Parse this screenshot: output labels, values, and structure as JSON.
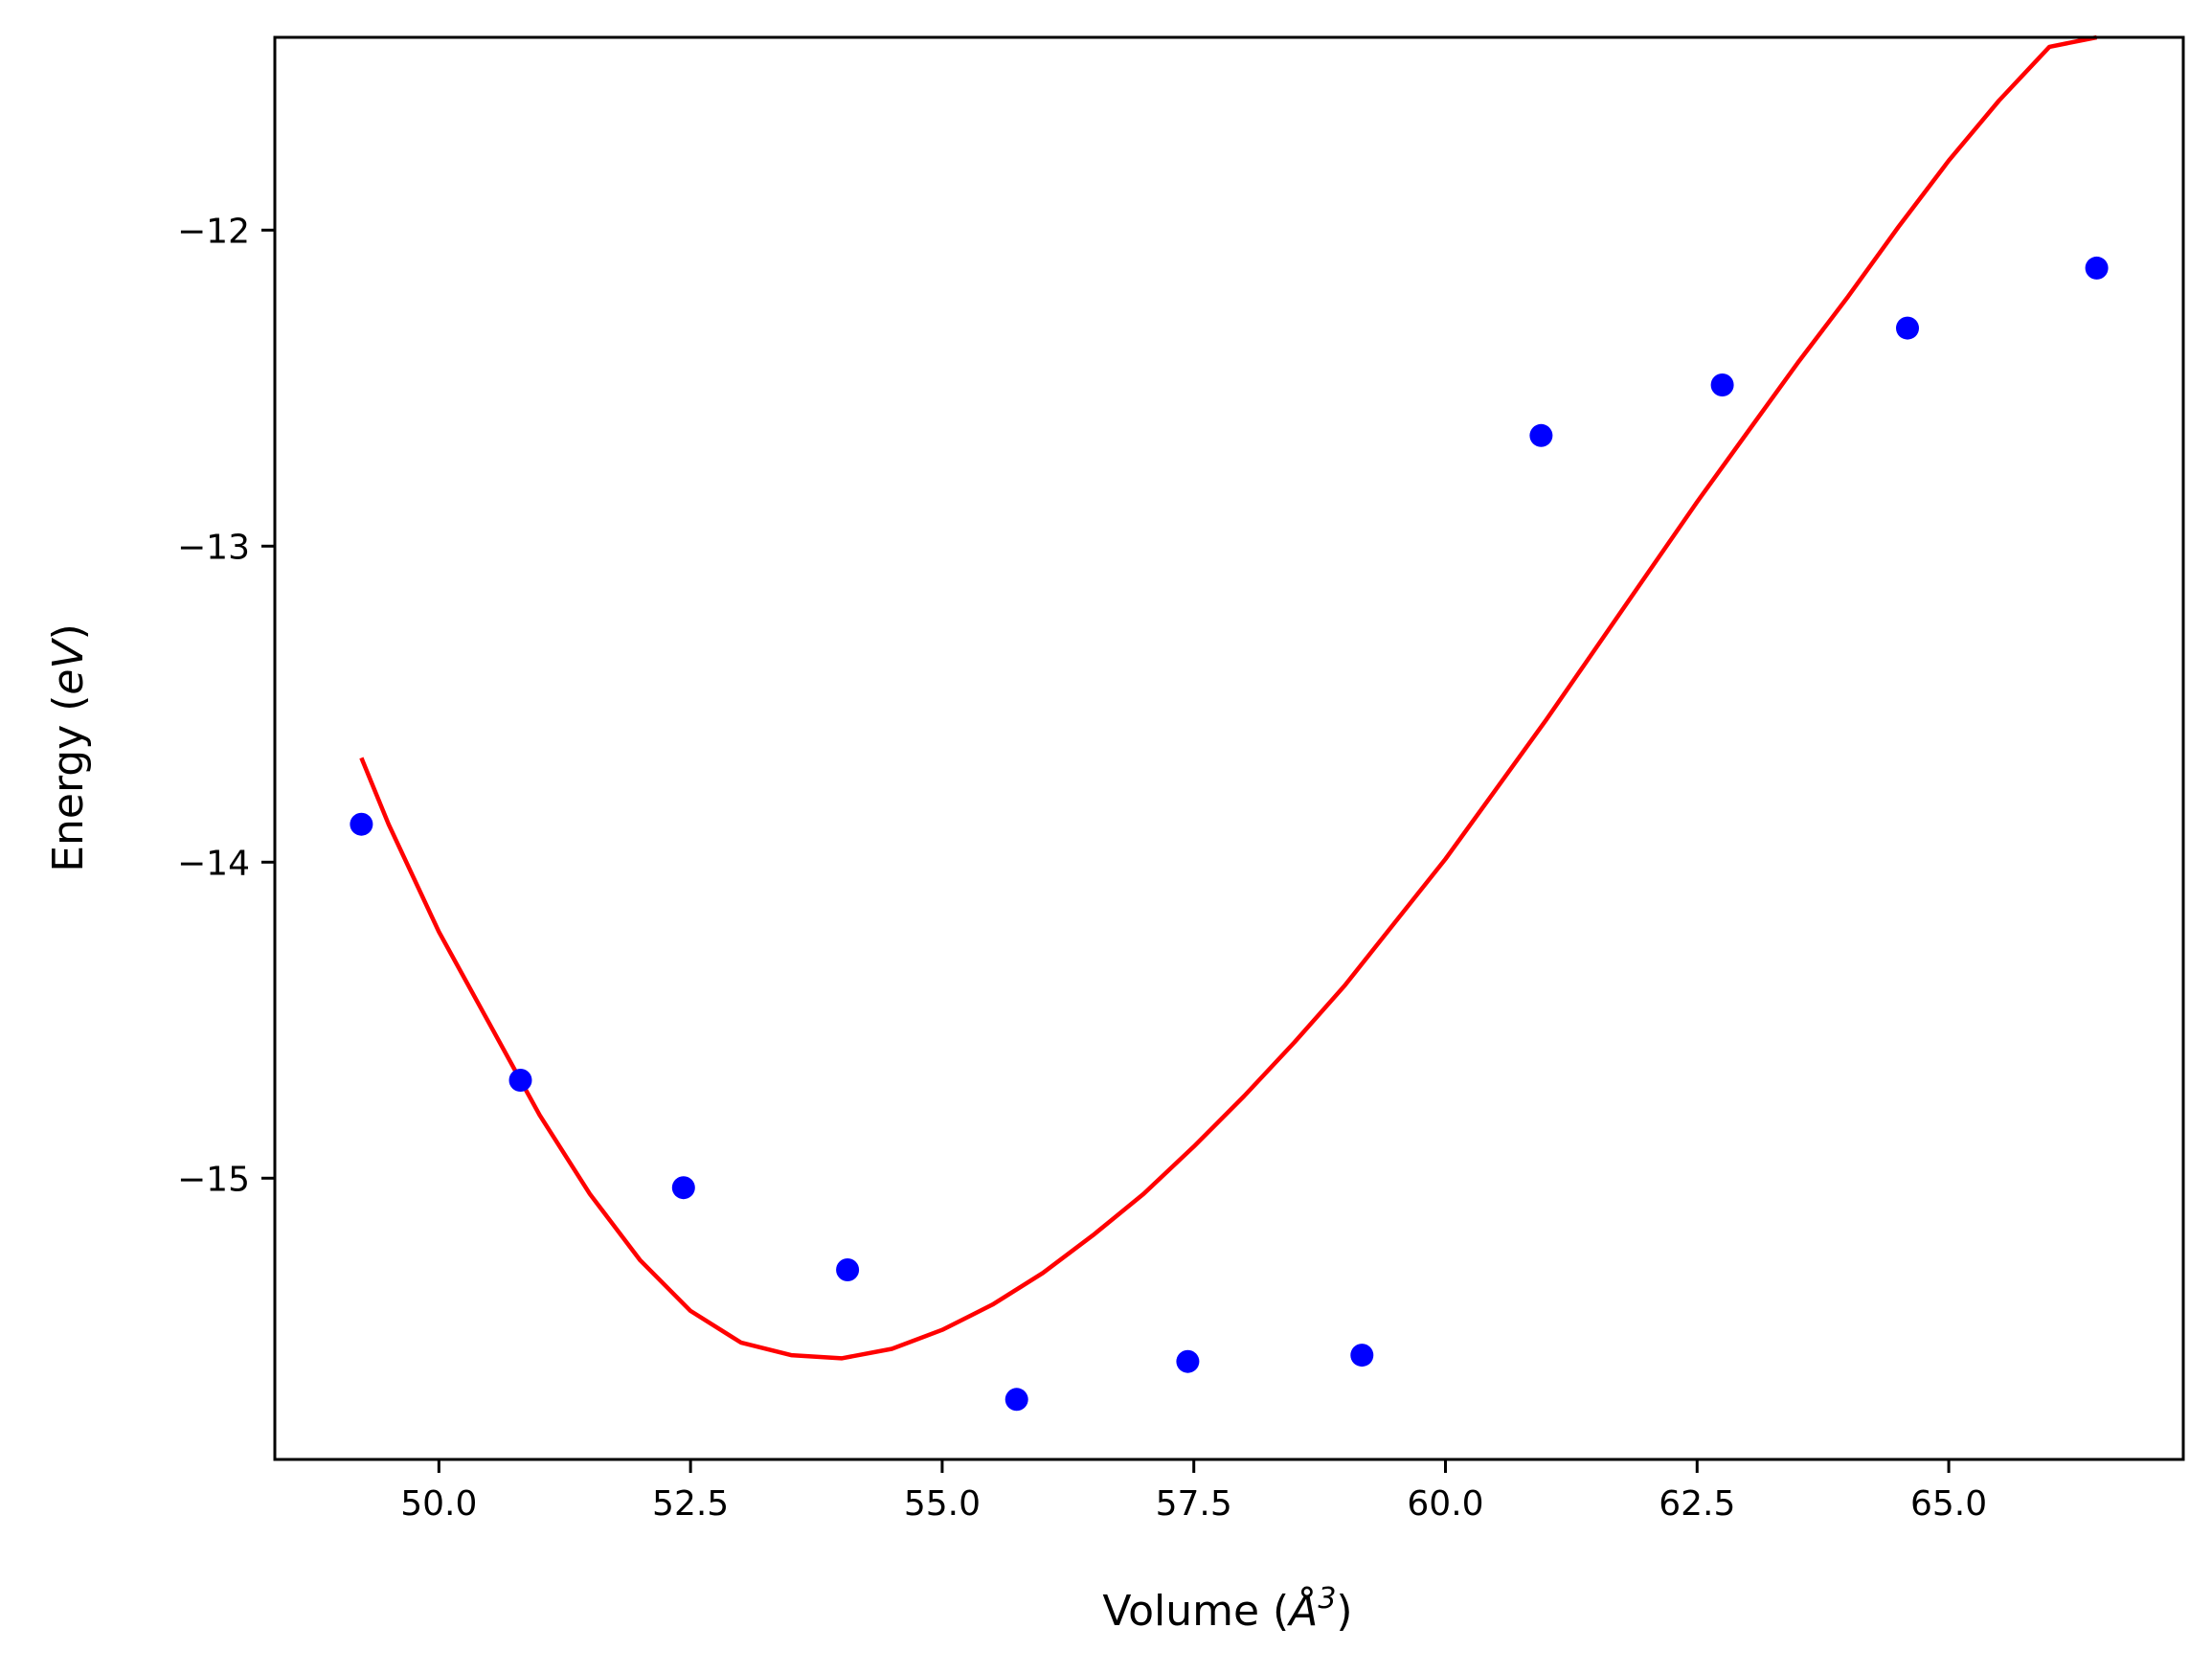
{
  "chart_data": {
    "type": "scatter",
    "title": "",
    "xlabel": "Volume (Å³)",
    "ylabel": "Energy (eV)",
    "xlabel_parts": {
      "prefix": "Volume (",
      "symbol": "Å",
      "sup": "3",
      "suffix": ")"
    },
    "ylabel_parts": {
      "prefix": "Energy (",
      "symbol": "eV",
      "suffix": ")"
    },
    "xlim": [
      48.37,
      67.33
    ],
    "ylim": [
      -15.89,
      -11.39
    ],
    "grid": false,
    "legend": "none",
    "x_ticks": [
      50.0,
      52.5,
      55.0,
      57.5,
      60.0,
      62.5,
      65.0
    ],
    "x_tick_labels": [
      "50.0",
      "52.5",
      "55.0",
      "57.5",
      "60.0",
      "62.5",
      "65.0"
    ],
    "y_ticks": [
      -12,
      -13,
      -14,
      -15
    ],
    "y_tick_labels": [
      "−12",
      "−13",
      "−14",
      "−15"
    ],
    "series": [
      {
        "kind": "scatter",
        "color": "#0000ff",
        "x": [
          49.23,
          50.81,
          52.43,
          54.06,
          55.74,
          57.44,
          59.17,
          60.95,
          62.75,
          64.59,
          66.47
        ],
        "y": [
          -13.88,
          -14.69,
          -15.03,
          -15.29,
          -15.7,
          -15.58,
          -15.56,
          -12.65,
          -12.49,
          -12.31,
          -12.12
        ]
      },
      {
        "kind": "line",
        "color": "#ff0000",
        "x": [
          49.23,
          49.5,
          50.0,
          50.5,
          51.0,
          51.5,
          52.0,
          52.5,
          53.0,
          53.5,
          54.0,
          54.5,
          55.0,
          55.5,
          56.0,
          56.5,
          57.0,
          57.5,
          58.0,
          58.5,
          59.0,
          59.5,
          60.0,
          60.5,
          61.0,
          61.5,
          62.0,
          62.5,
          63.0,
          63.5,
          64.0,
          64.5,
          65.0,
          65.5,
          66.0,
          66.47
        ],
        "y": [
          -13.67,
          -13.88,
          -14.22,
          -14.51,
          -14.8,
          -15.05,
          -15.26,
          -15.42,
          -15.52,
          -15.56,
          -15.57,
          -15.54,
          -15.48,
          -15.4,
          -15.3,
          -15.18,
          -15.05,
          -14.9,
          -14.74,
          -14.57,
          -14.39,
          -14.19,
          -13.99,
          -13.77,
          -13.55,
          -13.32,
          -13.09,
          -12.86,
          -12.64,
          -12.42,
          -12.21,
          -11.99,
          -11.78,
          -11.59,
          -11.42,
          -11.39
        ]
      }
    ]
  }
}
